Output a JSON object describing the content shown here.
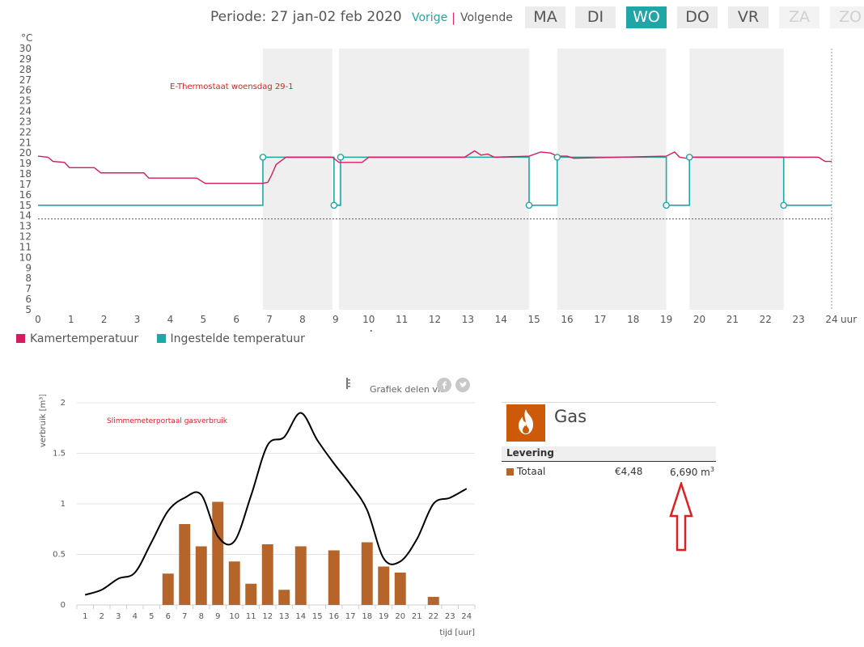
{
  "header": {
    "period_label": "Periode: 27 jan-02 feb 2020",
    "prev_label": "Vorige",
    "separator": "|",
    "next_label": "Volgende",
    "days": [
      {
        "label": "MA",
        "state": "normal"
      },
      {
        "label": "DI",
        "state": "normal"
      },
      {
        "label": "WO",
        "state": "active"
      },
      {
        "label": "DO",
        "state": "normal"
      },
      {
        "label": "VR",
        "state": "normal"
      },
      {
        "label": "ZA",
        "state": "disabled"
      },
      {
        "label": "ZO",
        "state": "disabled"
      }
    ]
  },
  "colors": {
    "room": "#d81b60",
    "setpoint": "#1fa6a6",
    "heating_band": "#efefef",
    "gas_bar": "#b5652a",
    "gas_line": "#000000",
    "annotation": "#e02020"
  },
  "chart_data": [
    {
      "type": "line",
      "title": "",
      "annotation": "E-Thermostaat woensdag 29-1",
      "ylabel": "°C",
      "xlabel": "uur",
      "xlim": [
        0,
        24
      ],
      "ylim": [
        5,
        30
      ],
      "x_ticks": [
        0,
        1,
        2,
        3,
        4,
        5,
        6,
        7,
        8,
        9,
        10,
        11,
        12,
        13,
        14,
        15,
        16,
        17,
        18,
        19,
        20,
        21,
        22,
        23,
        24
      ],
      "y_ticks": [
        5,
        6,
        7,
        8,
        9,
        10,
        11,
        12,
        13,
        14,
        15,
        16,
        17,
        18,
        19,
        20,
        21,
        22,
        23,
        24,
        25,
        26,
        27,
        28,
        29,
        30
      ],
      "reference_line": 13.7,
      "heating_periods": [
        [
          6.8,
          8.9
        ],
        [
          9.1,
          14.85
        ],
        [
          15.7,
          19.0
        ],
        [
          19.7,
          22.55
        ]
      ],
      "series": [
        {
          "name": "Kamertemperatuur",
          "x": [
            0,
            0.3,
            0.45,
            0.8,
            0.95,
            1.7,
            1.9,
            3.2,
            3.35,
            4.8,
            5.05,
            6.8,
            6.95,
            7.05,
            7.2,
            7.5,
            8.9,
            9.1,
            9.8,
            10.0,
            12.9,
            13.2,
            13.4,
            13.6,
            13.8,
            14.85,
            15.2,
            15.5,
            15.7,
            16.0,
            16.2,
            19.0,
            19.25,
            19.4,
            19.6,
            19.7,
            22.55,
            23.6,
            23.8,
            24
          ],
          "y": [
            19.7,
            19.6,
            19.2,
            19.1,
            18.6,
            18.6,
            18.1,
            18.1,
            17.6,
            17.6,
            17.1,
            17.1,
            17.2,
            17.8,
            18.9,
            19.6,
            19.6,
            19.1,
            19.1,
            19.6,
            19.6,
            20.2,
            19.8,
            19.9,
            19.6,
            19.7,
            20.1,
            20.0,
            19.7,
            19.7,
            19.5,
            19.7,
            20.1,
            19.6,
            19.5,
            19.6,
            19.6,
            19.6,
            19.2,
            19.2
          ]
        },
        {
          "name": "Ingestelde temperatuur",
          "x": [
            0,
            6.8,
            6.8,
            8.95,
            8.95,
            9.15,
            9.15,
            14.85,
            14.85,
            15.7,
            15.7,
            19.0,
            19.0,
            19.7,
            19.7,
            22.55,
            22.55,
            24
          ],
          "y": [
            15,
            15,
            19.6,
            19.6,
            15,
            15,
            19.6,
            19.6,
            15,
            15,
            19.6,
            19.6,
            15,
            15,
            19.6,
            19.6,
            15,
            15
          ],
          "markers_x": [
            6.8,
            8.95,
            9.15,
            14.85,
            15.7,
            19.0,
            19.7,
            22.55
          ],
          "markers_y": [
            19.6,
            15,
            19.6,
            15,
            19.6,
            15,
            19.6,
            15
          ]
        }
      ]
    },
    {
      "type": "bar",
      "title": "",
      "annotation": "Slimmemeterportaal gasverbruik",
      "ylabel": "verbruik [m³]",
      "xlabel": "tijd [uur]",
      "categories": [
        "1",
        "2",
        "3",
        "4",
        "5",
        "6",
        "7",
        "8",
        "9",
        "10",
        "11",
        "12",
        "13",
        "14",
        "15",
        "16",
        "17",
        "18",
        "19",
        "20",
        "21",
        "22",
        "23",
        "24"
      ],
      "ylim": [
        0,
        2
      ],
      "y_ticks": [
        0,
        0.5,
        1,
        1.5,
        2
      ],
      "y_tick_labels": [
        "0",
        "0.5",
        "1",
        "1.5",
        "2"
      ],
      "series": [
        {
          "name": "",
          "kind": "bar",
          "values": [
            0,
            0,
            0,
            0,
            0,
            0.31,
            0.8,
            0.58,
            1.02,
            0.43,
            0.21,
            0.6,
            0.15,
            0.58,
            0,
            0.54,
            0,
            0.62,
            0.38,
            0.32,
            0,
            0.08,
            0,
            0
          ]
        },
        {
          "name": "",
          "kind": "line",
          "values": [
            0.1,
            0.15,
            0.26,
            0.32,
            0.62,
            0.93,
            1.06,
            1.09,
            0.68,
            0.63,
            1.08,
            1.58,
            1.66,
            1.9,
            1.63,
            1.4,
            1.19,
            0.94,
            0.46,
            0.43,
            0.65,
            1.0,
            1.06,
            1.15
          ]
        }
      ]
    }
  ],
  "share": {
    "label": "Grafiek delen via",
    "icons": [
      "facebook-icon",
      "twitter-icon"
    ],
    "menu_icon": "export-menu-icon"
  },
  "gas": {
    "icon": "flame-icon",
    "title": "Gas",
    "levering_label": "Levering",
    "total_label": "Totaal",
    "total_price": "€4,48",
    "total_amount": "6,690 m",
    "total_unit_sup": "3"
  }
}
